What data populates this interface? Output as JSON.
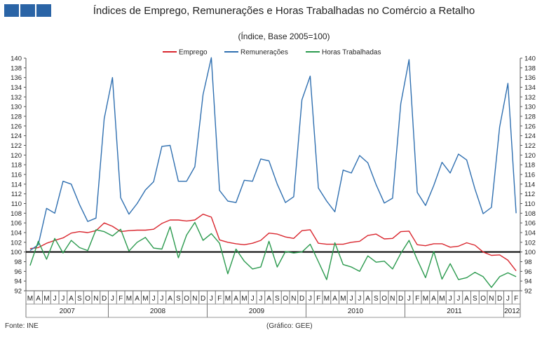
{
  "header": {
    "title": "Índices de Emprego, Remunerações e Horas Trabalhadas no Comércio a Retalho",
    "subtitle": "(Índice, Base 2005=100)"
  },
  "footer": {
    "source": "Fonte: INE",
    "credit": "(Gráfico: GEE)"
  },
  "chart_data": {
    "type": "line",
    "title": "Índices de Emprego, Remunerações e Horas Trabalhadas no Comércio a Retalho",
    "subtitle": "(Índice, Base 2005=100)",
    "ylim": [
      92,
      140
    ],
    "ytick_step": 2,
    "reference_line": 100,
    "legend_position": "top-center",
    "month_labels": [
      "M",
      "A",
      "M",
      "J",
      "J",
      "A",
      "S",
      "O",
      "N",
      "D",
      "J",
      "F",
      "M",
      "A",
      "M",
      "J",
      "J",
      "A",
      "S",
      "O",
      "N",
      "D",
      "J",
      "F",
      "M",
      "A",
      "M",
      "J",
      "J",
      "A",
      "S",
      "O",
      "N",
      "D",
      "J",
      "F",
      "M",
      "A",
      "M",
      "J",
      "J",
      "A",
      "S",
      "O",
      "N",
      "D",
      "J",
      "F",
      "M",
      "A",
      "M",
      "J",
      "J",
      "A",
      "S",
      "O",
      "N",
      "D",
      "J",
      "F"
    ],
    "year_groups": [
      {
        "label": "2007",
        "start": 0,
        "end": 9
      },
      {
        "label": "2008",
        "start": 10,
        "end": 21
      },
      {
        "label": "2009",
        "start": 22,
        "end": 33
      },
      {
        "label": "2010",
        "start": 34,
        "end": 45
      },
      {
        "label": "2011",
        "start": 46,
        "end": 57
      },
      {
        "label": "2012",
        "start": 58,
        "end": 59
      }
    ],
    "series": [
      {
        "name": "Emprego",
        "color": "#d9262e",
        "values": [
          100.7,
          100.9,
          101.8,
          102.4,
          102.9,
          103.9,
          104.2,
          104.0,
          104.4,
          106.0,
          105.3,
          104.2,
          104.4,
          104.5,
          104.5,
          104.7,
          105.9,
          106.6,
          106.6,
          106.4,
          106.6,
          107.8,
          107.2,
          102.5,
          102.0,
          101.7,
          101.5,
          101.8,
          102.4,
          103.9,
          103.7,
          103.1,
          102.8,
          104.4,
          104.6,
          101.8,
          101.6,
          101.6,
          101.6,
          102.0,
          102.2,
          103.4,
          103.7,
          102.7,
          102.8,
          104.2,
          104.3,
          101.5,
          101.3,
          101.7,
          101.7,
          101.0,
          101.2,
          101.9,
          101.4,
          100.0,
          99.3,
          99.4,
          98.3,
          96.1
        ]
      },
      {
        "name": "Remunerações",
        "color": "#2f6fb0",
        "values": [
          100.3,
          101.5,
          109.0,
          108.0,
          114.6,
          114.0,
          109.8,
          106.3,
          107.0,
          127.5,
          136.0,
          111.2,
          107.8,
          110.0,
          112.8,
          114.5,
          121.8,
          122.0,
          114.6,
          114.6,
          117.6,
          132.5,
          140.1,
          112.7,
          110.5,
          110.2,
          114.8,
          114.6,
          119.2,
          118.8,
          114.0,
          110.2,
          111.4,
          131.4,
          136.3,
          113.2,
          110.5,
          108.3,
          116.9,
          116.3,
          119.9,
          118.4,
          113.9,
          110.1,
          111.1,
          130.6,
          139.7,
          112.3,
          109.6,
          113.7,
          118.5,
          116.3,
          120.2,
          119.0,
          113.0,
          107.9,
          109.2,
          125.8,
          134.8,
          108.0
        ]
      },
      {
        "name": "Horas Trabalhadas",
        "color": "#2b9a4e",
        "values": [
          97.2,
          102.2,
          98.5,
          102.8,
          99.8,
          102.4,
          100.9,
          100.3,
          104.6,
          104.2,
          103.3,
          104.7,
          100.2,
          102.0,
          103.0,
          100.8,
          100.6,
          105.2,
          98.8,
          103.5,
          106.1,
          102.4,
          103.8,
          101.8,
          95.5,
          100.6,
          98.1,
          96.5,
          96.9,
          102.2,
          96.9,
          100.1,
          99.8,
          100.0,
          101.6,
          98.0,
          94.3,
          101.9,
          97.4,
          96.9,
          96.0,
          99.2,
          97.9,
          98.1,
          96.5,
          99.7,
          102.4,
          98.4,
          94.7,
          100.1,
          94.4,
          97.6,
          94.3,
          94.7,
          95.8,
          94.9,
          92.7,
          94.9,
          95.7,
          94.9
        ]
      }
    ]
  }
}
